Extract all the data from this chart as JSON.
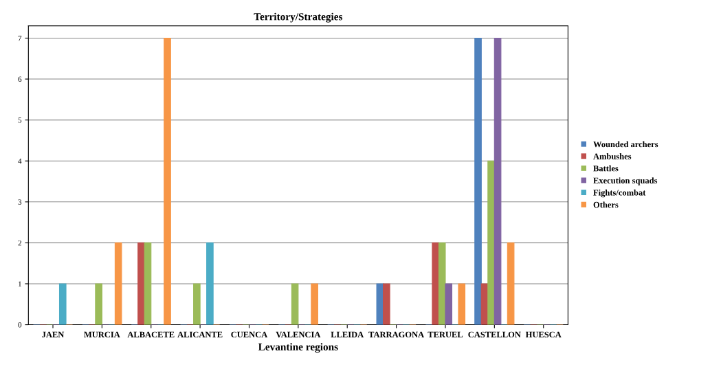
{
  "chart_data": {
    "type": "bar",
    "title": "Territory/Strategies",
    "xlabel": "Levantine regions",
    "categories": [
      "JAEN",
      "MURCIA",
      "ALBACETE",
      "ALICANTE",
      "CUENCA",
      "VALENCIA",
      "LLEIDA",
      "TARRAGONA",
      "TERUEL",
      "CASTELLON",
      "HUESCA"
    ],
    "series": [
      {
        "name": "Wounded archers",
        "color": "#4f81bd",
        "values": [
          0,
          0,
          0,
          0,
          0,
          0,
          0,
          1,
          0,
          7,
          0
        ]
      },
      {
        "name": "Ambushes",
        "color": "#c0504d",
        "values": [
          0,
          0,
          2,
          0,
          0,
          0,
          0,
          1,
          2,
          1,
          0
        ]
      },
      {
        "name": "Battles",
        "color": "#9bbb59",
        "values": [
          0,
          1,
          2,
          1,
          0,
          1,
          0,
          0,
          2,
          4,
          0
        ]
      },
      {
        "name": "Execution squads",
        "color": "#8064a2",
        "values": [
          0,
          0,
          0,
          0,
          0,
          0,
          0,
          0,
          1,
          7,
          0
        ]
      },
      {
        "name": "Fights/combat",
        "color": "#4bacc6",
        "values": [
          1,
          0,
          0,
          2,
          0,
          0,
          0,
          0,
          0,
          0,
          0
        ]
      },
      {
        "name": "Others",
        "color": "#f79646",
        "values": [
          0,
          2,
          7,
          0,
          0,
          1,
          0,
          0,
          1,
          2,
          0
        ]
      }
    ],
    "ylim": [
      0,
      7.3
    ],
    "yticks": [
      0,
      1,
      2,
      3,
      4,
      5,
      6,
      7
    ],
    "grid": "y",
    "legend": "right"
  }
}
